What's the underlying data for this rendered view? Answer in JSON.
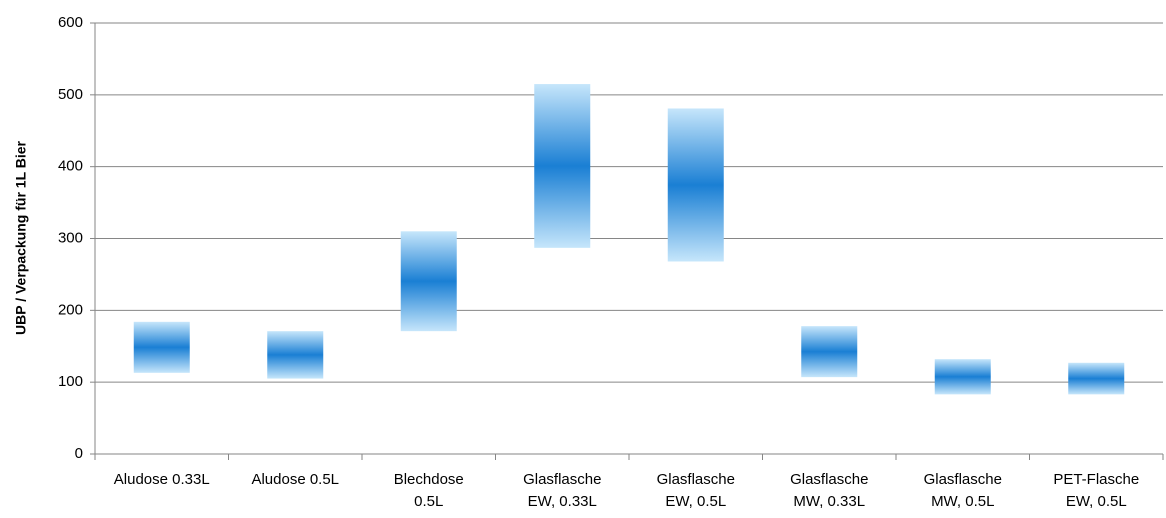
{
  "chart_data": {
    "type": "range-bar",
    "ylabel": "UBP / Verpackung für 1L Bier",
    "categories": [
      "Aludose 0.33L",
      "Aludose 0.5L",
      "Blechdose\n0.5L",
      "Glasflasche\nEW, 0.33L",
      "Glasflasche\nEW, 0.5L",
      "Glasflasche\nMW, 0.33L",
      "Glasflasche\nMW, 0.5L",
      "PET-Flasche\nEW, 0.5L"
    ],
    "low": [
      113,
      105,
      171,
      287,
      268,
      107,
      83,
      83
    ],
    "high": [
      184,
      171,
      310,
      515,
      481,
      178,
      132,
      127
    ],
    "color": "#1a7fd4",
    "edge_color": "#c6e6fb",
    "ylim": [
      0,
      600
    ],
    "yticks": [
      0,
      100,
      200,
      300,
      400,
      500,
      600
    ],
    "grid": true
  }
}
